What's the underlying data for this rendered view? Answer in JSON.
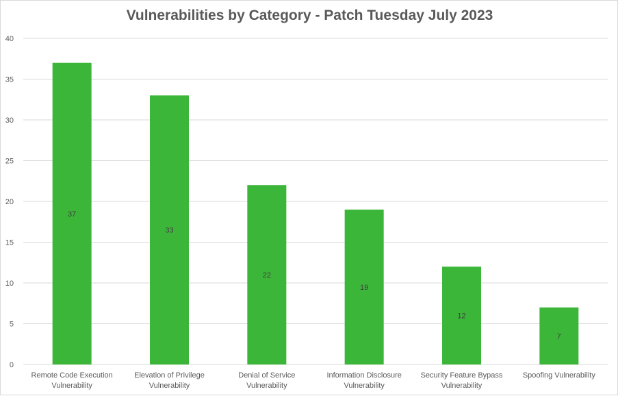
{
  "chart_data": {
    "type": "bar",
    "title": "Vulnerabilities by Category - Patch Tuesday July 2023",
    "xlabel": "",
    "ylabel": "",
    "categories": [
      [
        "Remote Code Execution",
        "Vulnerability"
      ],
      [
        "Elevation of Privilege",
        "Vulnerability"
      ],
      [
        "Denial of Service",
        "Vulnerability"
      ],
      [
        "Information Disclosure",
        "Vulnerability"
      ],
      [
        "Security Feature Bypass",
        "Vulnerability"
      ],
      [
        "Spoofing Vulnerability"
      ]
    ],
    "values": [
      37,
      33,
      22,
      19,
      12,
      7
    ],
    "data_labels": [
      "37",
      "33",
      "22",
      "19",
      "12",
      "7"
    ],
    "ylim": [
      0,
      40
    ],
    "yticks": [
      "0",
      "5",
      "10",
      "15",
      "20",
      "25",
      "30",
      "35",
      "40"
    ],
    "grid": true,
    "legend": "none",
    "bar_color": "#3cb639",
    "grid_color": "#d9d9d9"
  }
}
